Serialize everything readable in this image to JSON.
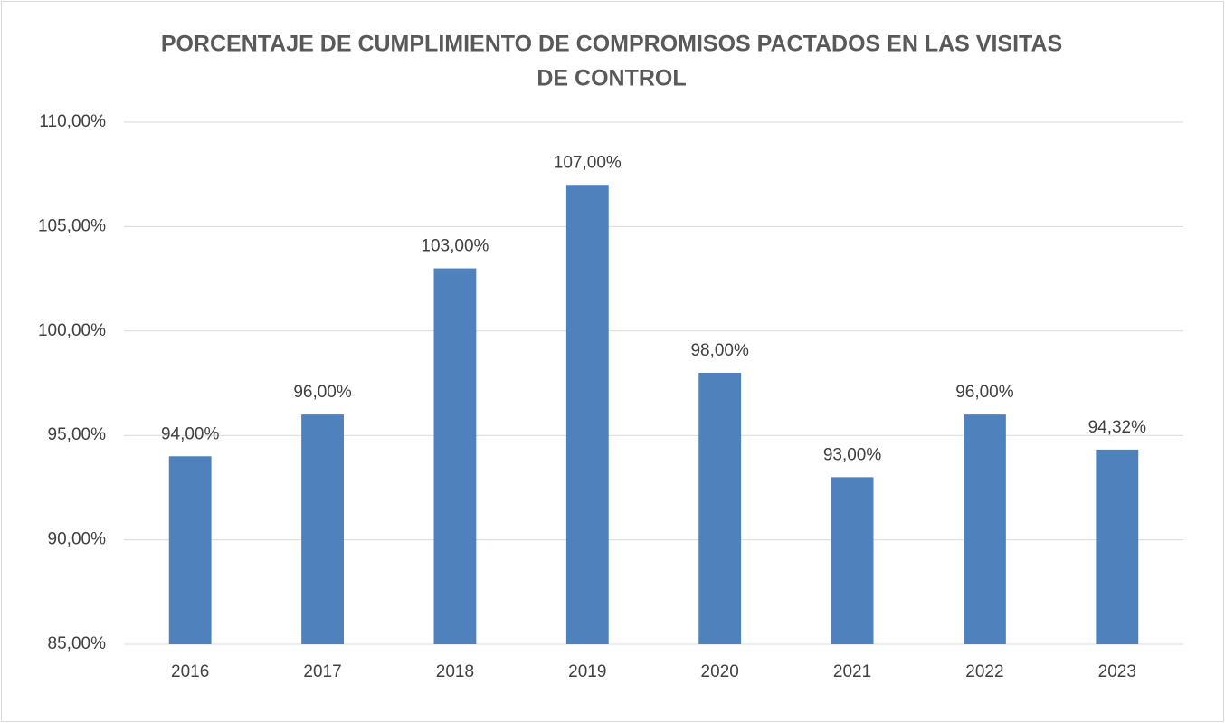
{
  "chart_data": {
    "type": "bar",
    "title": [
      "PORCENTAJE DE CUMPLIMIENTO DE COMPROMISOS PACTADOS EN LAS VISITAS",
      "DE CONTROL"
    ],
    "categories": [
      "2016",
      "2017",
      "2018",
      "2019",
      "2020",
      "2021",
      "2022",
      "2023"
    ],
    "values": [
      94,
      96,
      103,
      107,
      98,
      93,
      96,
      94.32
    ],
    "value_labels": [
      "94,00%",
      "96,00%",
      "103,00%",
      "107,00%",
      "98,00%",
      "93,00%",
      "96,00%",
      "94,32%"
    ],
    "color": "#4f81bd",
    "ylim": [
      85,
      110
    ],
    "yticks": [
      {
        "value": 85,
        "label": "85,00%"
      },
      {
        "value": 90,
        "label": "90,00%"
      },
      {
        "value": 95,
        "label": "95,00%"
      },
      {
        "value": 100,
        "label": "100,00%"
      },
      {
        "value": 105,
        "label": "105,00%"
      },
      {
        "value": 110,
        "label": "110,00%"
      }
    ],
    "grid": true
  }
}
